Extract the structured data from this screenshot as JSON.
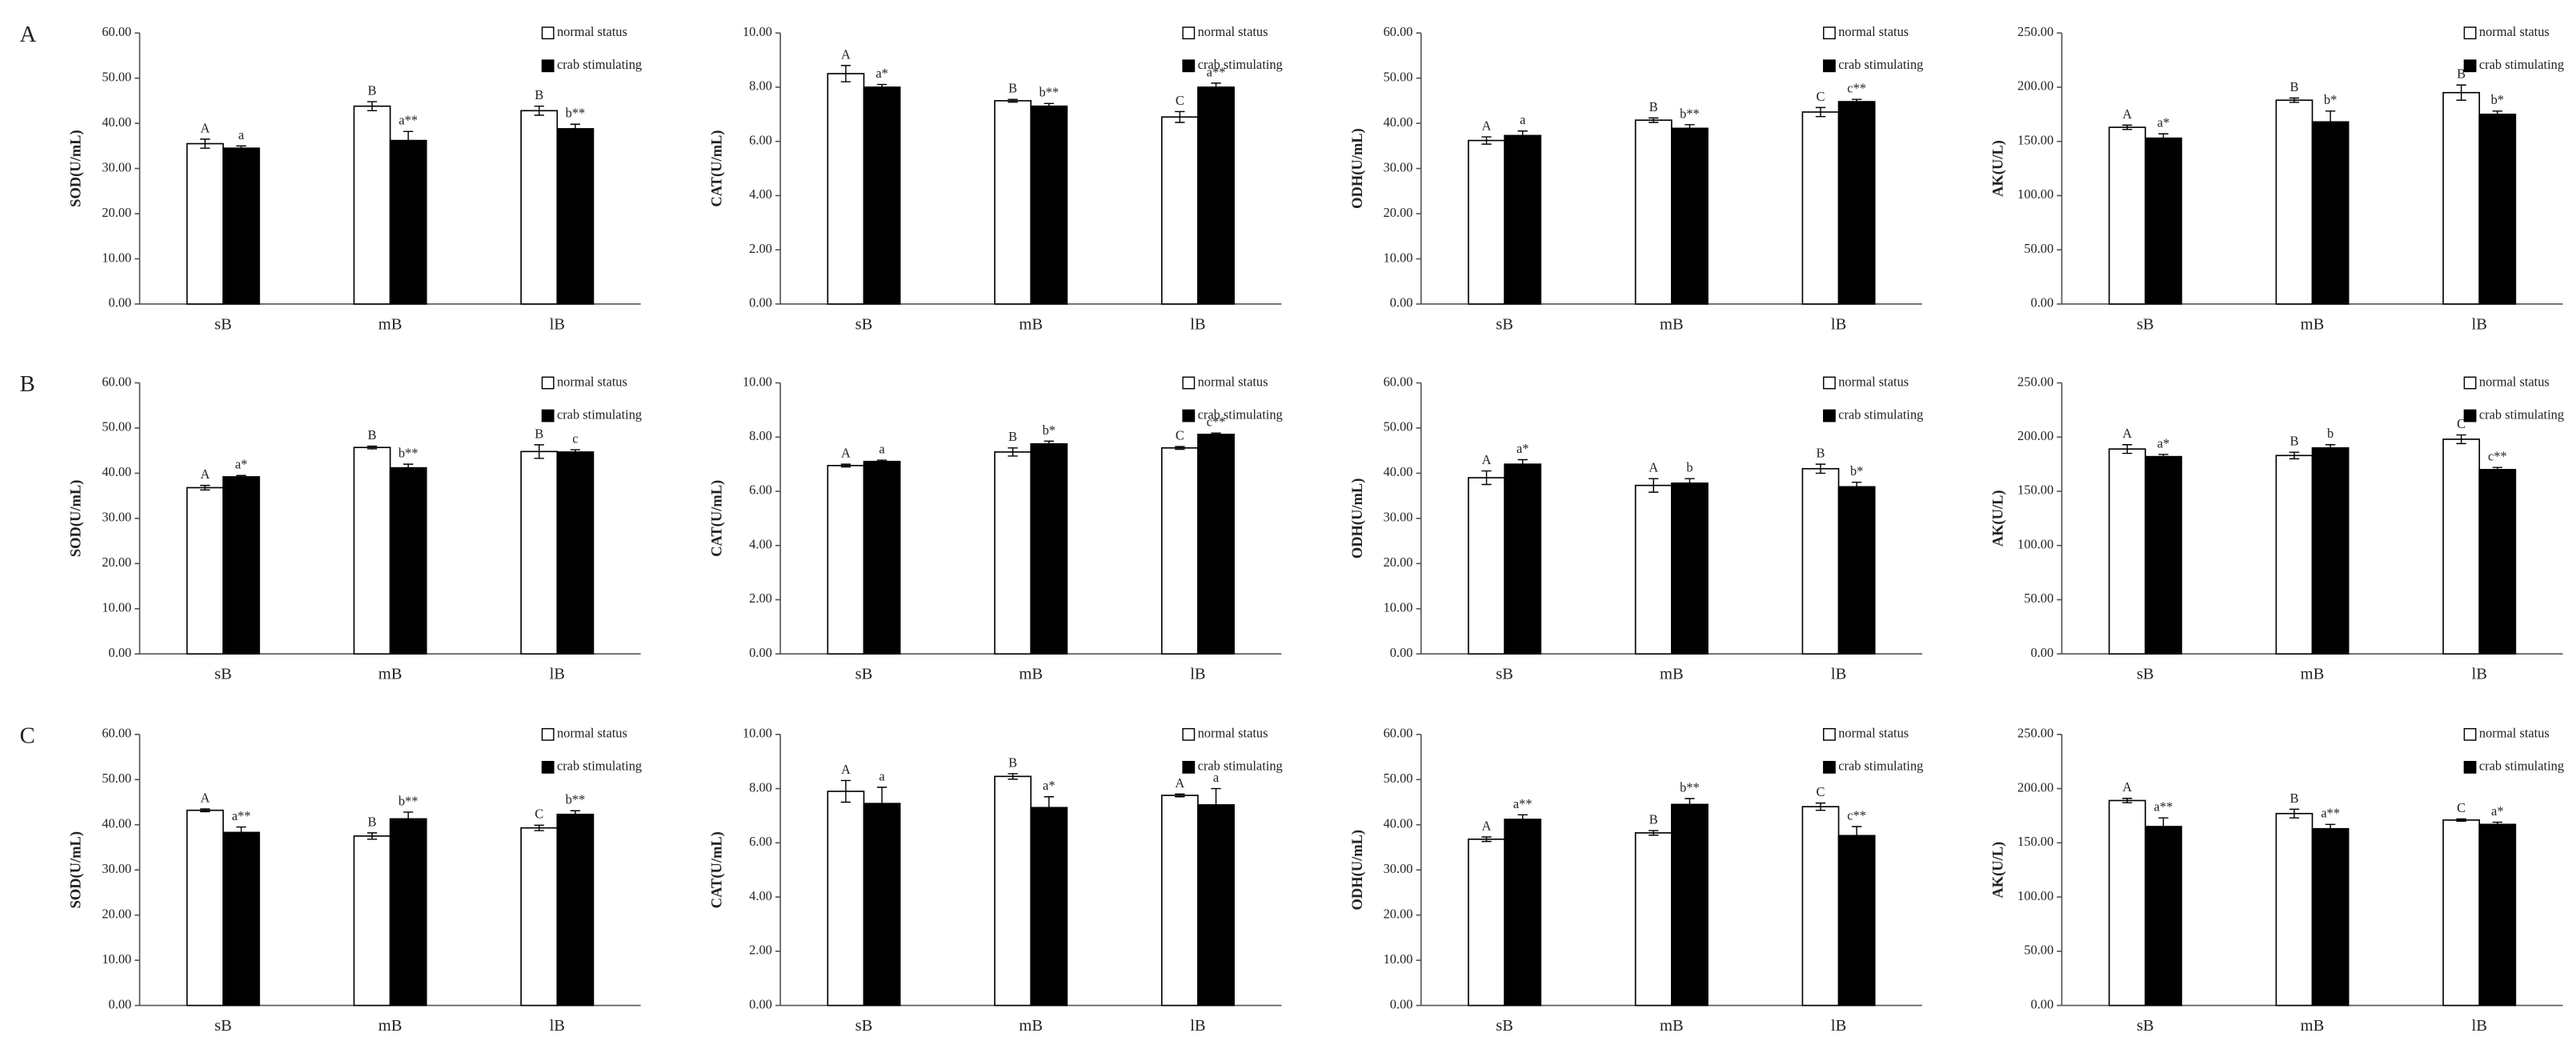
{
  "chart_data": [
    {
      "type": "bar",
      "panel_label": "A",
      "ylabel": "SOD(U/mL)",
      "categories": [
        "sB",
        "mB",
        "lB"
      ],
      "ylim": [
        0,
        60
      ],
      "yticks": [
        {
          "value": 0,
          "label": "0.00"
        },
        {
          "value": 10,
          "label": "10.00"
        },
        {
          "value": 20,
          "label": "20.00"
        },
        {
          "value": 30,
          "label": "30.00"
        },
        {
          "value": 40,
          "label": "40.00"
        },
        {
          "value": 50,
          "label": "50.00"
        },
        {
          "value": 60,
          "label": "60.00"
        }
      ],
      "series": [
        {
          "name": "normal status",
          "color": "#ffffff",
          "values": [
            35.5,
            43.8,
            42.8
          ],
          "errors": [
            1,
            1,
            1
          ],
          "annotations": [
            "A",
            "B",
            "B"
          ]
        },
        {
          "name": "crab stimulating",
          "color": "#000000",
          "values": [
            34.5,
            36.2,
            38.8
          ],
          "errors": [
            0.5,
            2,
            1
          ],
          "annotations": [
            "a",
            "a**",
            "b**"
          ]
        }
      ]
    },
    {
      "type": "bar",
      "ylabel": "CAT(U/mL)",
      "categories": [
        "sB",
        "mB",
        "lB"
      ],
      "ylim": [
        0,
        10
      ],
      "yticks": [
        {
          "value": 0,
          "label": "0.00"
        },
        {
          "value": 2,
          "label": "2.00"
        },
        {
          "value": 4,
          "label": "4.00"
        },
        {
          "value": 6,
          "label": "6.00"
        },
        {
          "value": 8,
          "label": "8.00"
        },
        {
          "value": 10,
          "label": "10.00"
        }
      ],
      "series": [
        {
          "name": "normal status",
          "color": "#ffffff",
          "values": [
            8.5,
            7.5,
            6.9
          ],
          "errors": [
            0.3,
            0.05,
            0.2
          ],
          "annotations": [
            "A",
            "B",
            "C"
          ]
        },
        {
          "name": "crab stimulating",
          "color": "#000000",
          "values": [
            8.0,
            7.3,
            8.0
          ],
          "errors": [
            0.1,
            0.1,
            0.15
          ],
          "annotations": [
            "a*",
            "b**",
            "a**"
          ]
        }
      ]
    },
    {
      "type": "bar",
      "ylabel": "ODH(U/mL)",
      "categories": [
        "sB",
        "mB",
        "lB"
      ],
      "ylim": [
        0,
        60
      ],
      "yticks": [
        {
          "value": 0,
          "label": "0.00"
        },
        {
          "value": 10,
          "label": "10.00"
        },
        {
          "value": 20,
          "label": "20.00"
        },
        {
          "value": 30,
          "label": "30.00"
        },
        {
          "value": 40,
          "label": "40.00"
        },
        {
          "value": 50,
          "label": "50.00"
        },
        {
          "value": 60,
          "label": "60.00"
        }
      ],
      "series": [
        {
          "name": "normal status",
          "color": "#ffffff",
          "values": [
            36.2,
            40.7,
            42.5
          ],
          "errors": [
            0.8,
            0.5,
            1
          ],
          "annotations": [
            "A",
            "B",
            "C"
          ]
        },
        {
          "name": "crab stimulating",
          "color": "#000000",
          "values": [
            37.3,
            38.9,
            44.8
          ],
          "errors": [
            1,
            0.8,
            0.5
          ],
          "annotations": [
            "a",
            "b**",
            "c**"
          ]
        }
      ]
    },
    {
      "type": "bar",
      "ylabel": "AK(U/L)",
      "categories": [
        "sB",
        "mB",
        "lB"
      ],
      "ylim": [
        0,
        250
      ],
      "yticks": [
        {
          "value": 0,
          "label": "0.00"
        },
        {
          "value": 50,
          "label": "50.00"
        },
        {
          "value": 100,
          "label": "100.00"
        },
        {
          "value": 150,
          "label": "150.00"
        },
        {
          "value": 200,
          "label": "200.00"
        },
        {
          "value": 250,
          "label": "250.00"
        }
      ],
      "series": [
        {
          "name": "normal status",
          "color": "#ffffff",
          "values": [
            163,
            188,
            195
          ],
          "errors": [
            2,
            2,
            7
          ],
          "annotations": [
            "A",
            "B",
            "B"
          ]
        },
        {
          "name": "crab stimulating",
          "color": "#000000",
          "values": [
            153,
            168,
            175
          ],
          "errors": [
            4,
            10,
            3
          ],
          "annotations": [
            "a*",
            "b*",
            "b*"
          ]
        }
      ]
    },
    {
      "type": "bar",
      "panel_label": "B",
      "ylabel": "SOD(U/mL)",
      "categories": [
        "sB",
        "mB",
        "lB"
      ],
      "ylim": [
        0,
        60
      ],
      "yticks": [
        {
          "value": 0,
          "label": "0.00"
        },
        {
          "value": 10,
          "label": "10.00"
        },
        {
          "value": 20,
          "label": "20.00"
        },
        {
          "value": 30,
          "label": "30.00"
        },
        {
          "value": 40,
          "label": "40.00"
        },
        {
          "value": 50,
          "label": "50.00"
        },
        {
          "value": 60,
          "label": "60.00"
        }
      ],
      "series": [
        {
          "name": "normal status",
          "color": "#ffffff",
          "values": [
            36.8,
            45.7,
            44.8
          ],
          "errors": [
            0.5,
            0.3,
            1.5
          ],
          "annotations": [
            "A",
            "B",
            "B"
          ]
        },
        {
          "name": "crab stimulating",
          "color": "#000000",
          "values": [
            39.2,
            41.2,
            44.7
          ],
          "errors": [
            0.3,
            0.8,
            0.5
          ],
          "annotations": [
            "a*",
            "b**",
            "c"
          ]
        }
      ]
    },
    {
      "type": "bar",
      "ylabel": "CAT(U/mL)",
      "categories": [
        "sB",
        "mB",
        "lB"
      ],
      "ylim": [
        0,
        10
      ],
      "yticks": [
        {
          "value": 0,
          "label": "0.00"
        },
        {
          "value": 2,
          "label": "2.00"
        },
        {
          "value": 4,
          "label": "4.00"
        },
        {
          "value": 6,
          "label": "6.00"
        },
        {
          "value": 8,
          "label": "8.00"
        },
        {
          "value": 10,
          "label": "10.00"
        }
      ],
      "series": [
        {
          "name": "normal status",
          "color": "#ffffff",
          "values": [
            6.95,
            7.45,
            7.6
          ],
          "errors": [
            0.05,
            0.15,
            0.05
          ],
          "annotations": [
            "A",
            "B",
            "C"
          ]
        },
        {
          "name": "crab stimulating",
          "color": "#000000",
          "values": [
            7.1,
            7.75,
            8.1
          ],
          "errors": [
            0.05,
            0.1,
            0.05
          ],
          "annotations": [
            "a",
            "b*",
            "c**"
          ]
        }
      ]
    },
    {
      "type": "bar",
      "ylabel": "ODH(U/mL)",
      "categories": [
        "sB",
        "mB",
        "lB"
      ],
      "ylim": [
        0,
        60
      ],
      "yticks": [
        {
          "value": 0,
          "label": "0.00"
        },
        {
          "value": 10,
          "label": "10.00"
        },
        {
          "value": 20,
          "label": "20.00"
        },
        {
          "value": 30,
          "label": "30.00"
        },
        {
          "value": 40,
          "label": "40.00"
        },
        {
          "value": 50,
          "label": "50.00"
        },
        {
          "value": 60,
          "label": "60.00"
        }
      ],
      "series": [
        {
          "name": "normal status",
          "color": "#ffffff",
          "values": [
            39.0,
            37.3,
            41.0
          ],
          "errors": [
            1.5,
            1.5,
            1
          ],
          "annotations": [
            "A",
            "A",
            "B"
          ]
        },
        {
          "name": "crab stimulating",
          "color": "#000000",
          "values": [
            42.0,
            37.8,
            37.0
          ],
          "errors": [
            1,
            1,
            1
          ],
          "annotations": [
            "a*",
            "b",
            "b*"
          ]
        }
      ]
    },
    {
      "type": "bar",
      "ylabel": "AK(U/L)",
      "categories": [
        "sB",
        "mB",
        "lB"
      ],
      "ylim": [
        0,
        250
      ],
      "yticks": [
        {
          "value": 0,
          "label": "0.00"
        },
        {
          "value": 50,
          "label": "50.00"
        },
        {
          "value": 100,
          "label": "100.00"
        },
        {
          "value": 150,
          "label": "150.00"
        },
        {
          "value": 200,
          "label": "200.00"
        },
        {
          "value": 250,
          "label": "250.00"
        }
      ],
      "series": [
        {
          "name": "normal status",
          "color": "#ffffff",
          "values": [
            189,
            183,
            198
          ],
          "errors": [
            4,
            3,
            4
          ],
          "annotations": [
            "A",
            "B",
            "C"
          ]
        },
        {
          "name": "crab stimulating",
          "color": "#000000",
          "values": [
            182,
            190,
            170
          ],
          "errors": [
            2,
            3,
            2
          ],
          "annotations": [
            "a*",
            "b",
            "c**"
          ]
        }
      ]
    },
    {
      "type": "bar",
      "panel_label": "C",
      "ylabel": "SOD(U/mL)",
      "categories": [
        "sB",
        "mB",
        "lB"
      ],
      "ylim": [
        0,
        60
      ],
      "yticks": [
        {
          "value": 0,
          "label": "0.00"
        },
        {
          "value": 10,
          "label": "10.00"
        },
        {
          "value": 20,
          "label": "20.00"
        },
        {
          "value": 30,
          "label": "30.00"
        },
        {
          "value": 40,
          "label": "40.00"
        },
        {
          "value": 50,
          "label": "50.00"
        },
        {
          "value": 60,
          "label": "60.00"
        }
      ],
      "series": [
        {
          "name": "normal status",
          "color": "#ffffff",
          "values": [
            43.2,
            37.5,
            39.3
          ],
          "errors": [
            0.3,
            0.7,
            0.6
          ],
          "annotations": [
            "A",
            "B",
            "C"
          ]
        },
        {
          "name": "crab stimulating",
          "color": "#000000",
          "values": [
            38.3,
            41.3,
            42.3
          ],
          "errors": [
            1.2,
            1.5,
            0.8
          ],
          "annotations": [
            "a**",
            "b**",
            "b**"
          ]
        }
      ]
    },
    {
      "type": "bar",
      "ylabel": "CAT(U/mL)",
      "categories": [
        "sB",
        "mB",
        "lB"
      ],
      "ylim": [
        0,
        10
      ],
      "yticks": [
        {
          "value": 0,
          "label": "0.00"
        },
        {
          "value": 2,
          "label": "2.00"
        },
        {
          "value": 4,
          "label": "4.00"
        },
        {
          "value": 6,
          "label": "6.00"
        },
        {
          "value": 8,
          "label": "8.00"
        },
        {
          "value": 10,
          "label": "10.00"
        }
      ],
      "series": [
        {
          "name": "normal status",
          "color": "#ffffff",
          "values": [
            7.9,
            8.45,
            7.75
          ],
          "errors": [
            0.4,
            0.1,
            0.05
          ],
          "annotations": [
            "A",
            "B",
            "A"
          ]
        },
        {
          "name": "crab stimulating",
          "color": "#000000",
          "values": [
            7.45,
            7.3,
            7.4
          ],
          "errors": [
            0.6,
            0.4,
            0.6
          ],
          "annotations": [
            "a",
            "a*",
            "a"
          ]
        }
      ]
    },
    {
      "type": "bar",
      "ylabel": "ODH(U/mL)",
      "categories": [
        "sB",
        "mB",
        "lB"
      ],
      "ylim": [
        0,
        60
      ],
      "yticks": [
        {
          "value": 0,
          "label": "0.00"
        },
        {
          "value": 10,
          "label": "10.00"
        },
        {
          "value": 20,
          "label": "20.00"
        },
        {
          "value": 30,
          "label": "30.00"
        },
        {
          "value": 40,
          "label": "40.00"
        },
        {
          "value": 50,
          "label": "50.00"
        },
        {
          "value": 60,
          "label": "60.00"
        }
      ],
      "series": [
        {
          "name": "normal status",
          "color": "#ffffff",
          "values": [
            36.8,
            38.2,
            44.0
          ],
          "errors": [
            0.5,
            0.5,
            0.8
          ],
          "annotations": [
            "A",
            "B",
            "C"
          ]
        },
        {
          "name": "crab stimulating",
          "color": "#000000",
          "values": [
            41.2,
            44.5,
            37.6
          ],
          "errors": [
            1,
            1.3,
            2
          ],
          "annotations": [
            "a**",
            "b**",
            "c**"
          ]
        }
      ]
    },
    {
      "type": "bar",
      "ylabel": "AK(U/L)",
      "categories": [
        "sB",
        "mB",
        "lB"
      ],
      "ylim": [
        0,
        250
      ],
      "yticks": [
        {
          "value": 0,
          "label": "0.00"
        },
        {
          "value": 50,
          "label": "50.00"
        },
        {
          "value": 100,
          "label": "100.00"
        },
        {
          "value": 150,
          "label": "150.00"
        },
        {
          "value": 200,
          "label": "200.00"
        },
        {
          "value": 250,
          "label": "250.00"
        }
      ],
      "series": [
        {
          "name": "normal status",
          "color": "#ffffff",
          "values": [
            189,
            177,
            171
          ],
          "errors": [
            2,
            4,
            1
          ],
          "annotations": [
            "A",
            "B",
            "C"
          ]
        },
        {
          "name": "crab stimulating",
          "color": "#000000",
          "values": [
            165,
            163,
            167
          ],
          "errors": [
            8,
            4,
            2
          ],
          "annotations": [
            "a**",
            "a**",
            "a*"
          ]
        }
      ]
    }
  ]
}
